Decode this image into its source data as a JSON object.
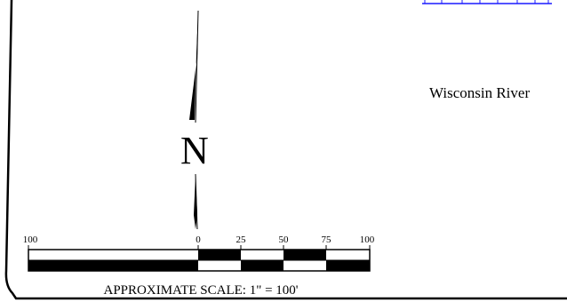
{
  "map": {
    "north_label": "N",
    "river_label": "Wisconsin River",
    "scale": {
      "caption": "APPROXIMATE SCALE: 1\" = 100'",
      "ticks": [
        "100",
        "0",
        "25",
        "50",
        "75",
        "100"
      ]
    }
  },
  "colors": {
    "ink": "#000000",
    "background": "#ffffff",
    "link_fragment": "#1a1aff"
  },
  "icons": {
    "north_arrow": "north-arrow-icon",
    "scale_bar": "scale-bar-icon",
    "top_link_fragment": "link-underline-fragment"
  }
}
